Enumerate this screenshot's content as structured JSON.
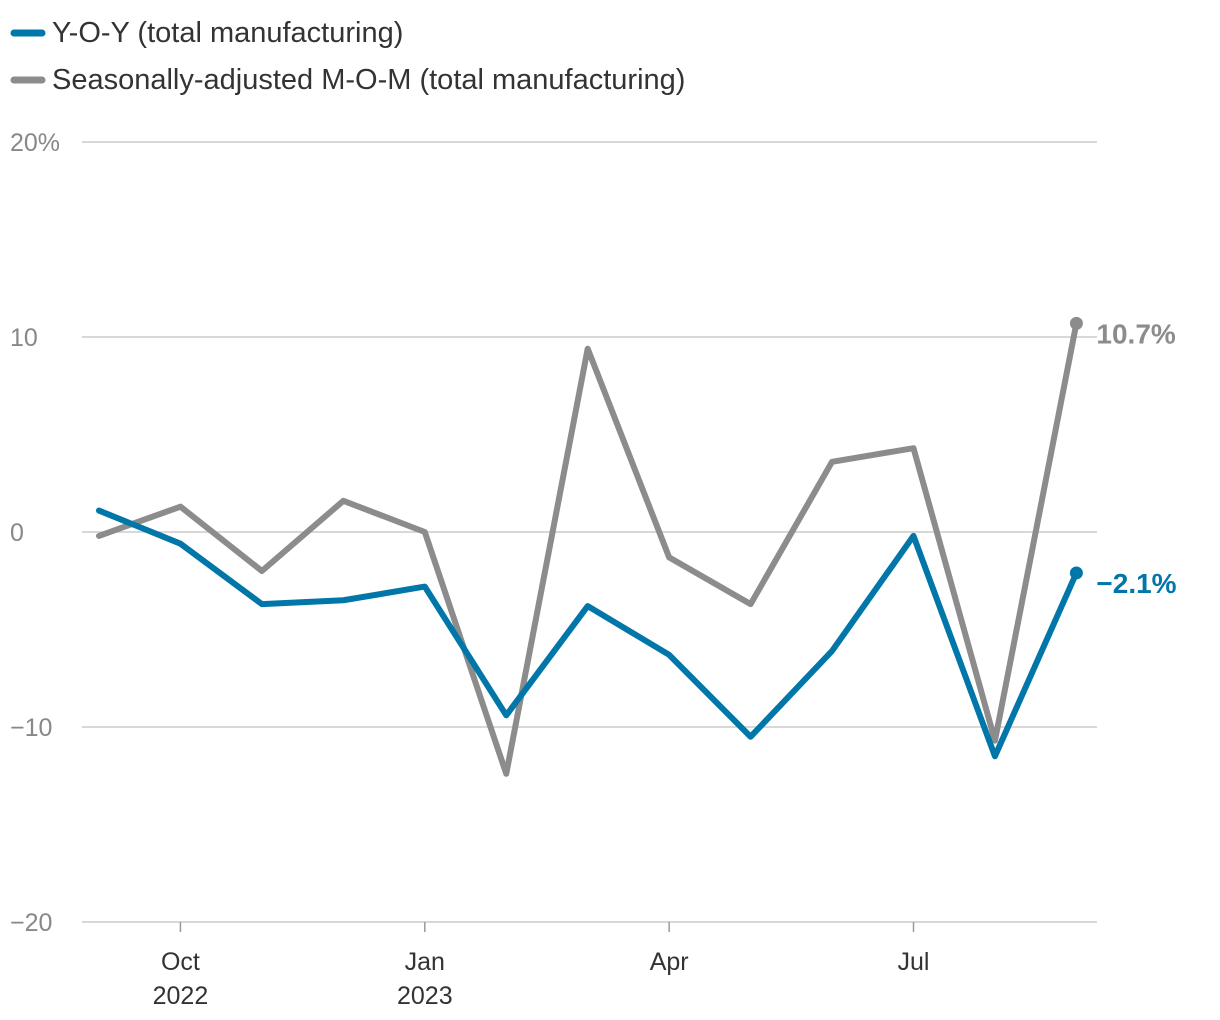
{
  "chart_data": {
    "type": "line",
    "title": "",
    "xlabel": "",
    "ylabel": "",
    "ylim": [
      -20,
      20
    ],
    "y_ticks": [
      {
        "value": 20,
        "label": "20%"
      },
      {
        "value": 10,
        "label": "10"
      },
      {
        "value": 0,
        "label": "0"
      },
      {
        "value": -10,
        "label": "−10"
      },
      {
        "value": -20,
        "label": "−20"
      }
    ],
    "x": [
      "2022-09",
      "2022-10",
      "2022-11",
      "2022-12",
      "2023-01",
      "2023-02",
      "2023-03",
      "2023-04",
      "2023-05",
      "2023-06",
      "2023-07",
      "2023-08",
      "2023-09"
    ],
    "x_ticks": [
      {
        "index": 1,
        "line1": "Oct",
        "line2": "2022"
      },
      {
        "index": 4,
        "line1": "Jan",
        "line2": "2023"
      },
      {
        "index": 7,
        "line1": "Apr",
        "line2": ""
      },
      {
        "index": 10,
        "line1": "Jul",
        "line2": ""
      }
    ],
    "series": [
      {
        "name": "Y-O-Y (total manufacturing)",
        "color": "#0077a8",
        "values": [
          1.1,
          -0.6,
          -3.7,
          -3.5,
          -2.8,
          -9.4,
          -3.8,
          -6.3,
          -10.5,
          -6.1,
          -0.2,
          -11.5,
          -2.1
        ],
        "end_label": "−2.1%"
      },
      {
        "name": "Seasonally-adjusted M-O-M (total manufacturing)",
        "color": "#8c8c8c",
        "values": [
          -0.2,
          1.3,
          -2.0,
          1.6,
          0.0,
          -12.4,
          9.4,
          -1.3,
          -3.7,
          3.6,
          4.3,
          -10.7,
          10.7
        ],
        "end_label": "10.7%"
      }
    ],
    "legend_position": "top-left",
    "grid": true
  }
}
